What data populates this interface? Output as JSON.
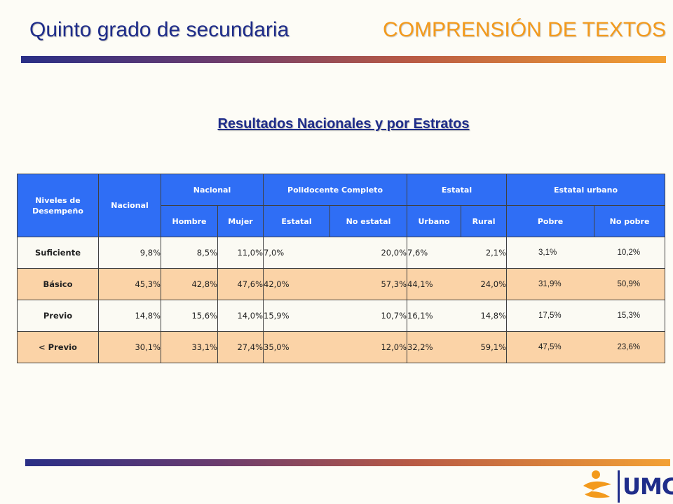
{
  "header": {
    "grade": "Quinto grado de secundaria",
    "area": "COMPRENSIÓN DE TEXTOS"
  },
  "subtitle": "Resultados Nacionales y por Estratos",
  "table": {
    "col_levels": "Niveles de Desempeño",
    "col_nacional": "Nacional",
    "groups": [
      "Nacional",
      "Polidocente Completo",
      "Estatal",
      "Estatal urbano"
    ],
    "subheaders": [
      "Hombre",
      "Mujer",
      "Estatal",
      "No estatal",
      "Urbano",
      "Rural",
      "Pobre",
      "No pobre"
    ],
    "rows": [
      {
        "level": "Suficiente",
        "nacional": "9,8%",
        "hombre": "8,5%",
        "mujer": "11,0%",
        "estatal": "7,0%",
        "no_estatal": "20,0%",
        "urbano": "7,6%",
        "rural": "2,1%",
        "pobre": "3,1%",
        "no_pobre": "10,2%"
      },
      {
        "level": "Básico",
        "nacional": "45,3%",
        "hombre": "42,8%",
        "mujer": "47,6%",
        "estatal": "42,0%",
        "no_estatal": "57,3%",
        "urbano": "44,1%",
        "rural": "24,0%",
        "pobre": "31,9%",
        "no_pobre": "50,9%"
      },
      {
        "level": "Previo",
        "nacional": "14,8%",
        "hombre": "15,6%",
        "mujer": "14,0%",
        "estatal": "15,9%",
        "no_estatal": "10,7%",
        "urbano": "16,1%",
        "rural": "14,8%",
        "pobre": "17,5%",
        "no_pobre": "15,3%"
      },
      {
        "level": "< Previo",
        "nacional": "30,1%",
        "hombre": "33,1%",
        "mujer": "27,4%",
        "estatal": "35,0%",
        "no_estatal": "12,0%",
        "urbano": "32,2%",
        "rural": "59,1%",
        "pobre": "47,5%",
        "no_pobre": "23,6%"
      }
    ]
  },
  "logo": {
    "text": "UMC"
  },
  "colors": {
    "title_blue": "#1f2d8a",
    "title_orange": "#f39a1c",
    "header_blue": "#2f6ef5",
    "row_peach": "#fbd3a7"
  }
}
